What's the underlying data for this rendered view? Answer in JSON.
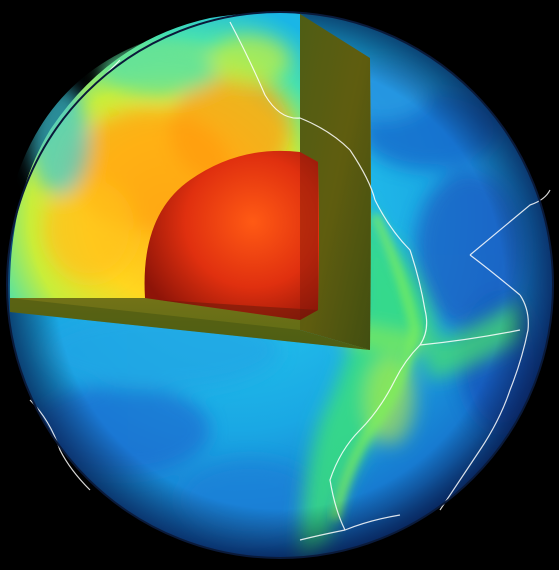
{
  "image": {
    "subject": "globe-cutaway",
    "text": []
  },
  "palette": {
    "background": "#000000",
    "surface_cool": "#1f7fd6",
    "surface_mid": "#1ec8e8",
    "surface_warm": "#5fe86a",
    "interior_hot": "#ffd21a",
    "interior_hotter": "#ff8a12",
    "core": "#e02a10",
    "plate_boundary": "#ffffff"
  }
}
